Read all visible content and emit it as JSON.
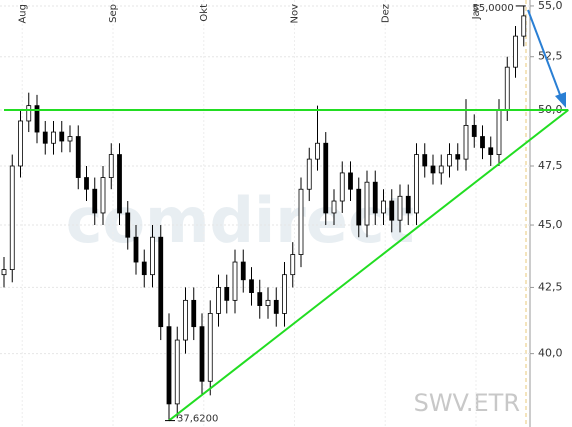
{
  "chart_data": {
    "type": "candlestick",
    "log_scale": true,
    "grid": true,
    "watermark": "comdirect",
    "symbol": "SWV.ETR",
    "categories": [
      null,
      "Aug",
      null,
      null,
      null,
      null,
      null,
      null,
      null,
      null,
      null,
      null,
      "Sep",
      null,
      null,
      null,
      null,
      null,
      null,
      null,
      null,
      null,
      null,
      "Okt",
      null,
      null,
      null,
      null,
      null,
      null,
      null,
      null,
      null,
      null,
      "Nov",
      null,
      null,
      null,
      null,
      null,
      null,
      null,
      null,
      null,
      null,
      "Dez",
      null,
      null,
      null,
      null,
      null,
      null,
      null,
      null,
      null,
      null,
      "Jan",
      null,
      null,
      null,
      null,
      null,
      null,
      null
    ],
    "open": [
      43.0,
      43.2,
      47.5,
      49.5,
      50.2,
      49.0,
      48.5,
      49.0,
      48.6,
      48.8,
      47.0,
      46.5,
      45.5,
      47.0,
      48.0,
      45.5,
      44.5,
      43.5,
      43.0,
      44.5,
      41.0,
      38.2,
      40.5,
      42.0,
      41.0,
      39.0,
      41.5,
      42.5,
      42.0,
      43.5,
      42.8,
      42.3,
      41.8,
      42.0,
      41.5,
      43.0,
      43.8,
      46.5,
      47.8,
      48.5,
      45.5,
      46.0,
      47.2,
      46.5,
      45.0,
      46.8,
      45.5,
      46.0,
      45.2,
      46.2,
      45.5,
      48.0,
      47.5,
      47.2,
      47.5,
      48.0,
      47.8,
      49.3,
      48.8,
      48.3,
      48.0,
      50.0,
      52.0,
      53.5
    ],
    "high": [
      43.7,
      48.0,
      50.0,
      50.8,
      50.7,
      49.5,
      49.5,
      49.5,
      49.3,
      49.3,
      47.5,
      47.0,
      47.5,
      48.5,
      48.5,
      46.0,
      45.0,
      44.0,
      45.0,
      45.0,
      41.5,
      41.0,
      42.5,
      42.5,
      41.5,
      42.0,
      43.0,
      43.0,
      44.0,
      44.0,
      43.3,
      42.8,
      42.5,
      42.5,
      43.5,
      44.3,
      47.0,
      48.3,
      50.2,
      49.0,
      46.5,
      47.7,
      47.7,
      47.0,
      47.3,
      47.3,
      46.5,
      46.5,
      46.7,
      46.7,
      48.5,
      48.5,
      48.0,
      48.0,
      48.5,
      48.5,
      50.5,
      49.8,
      49.3,
      48.8,
      50.5,
      52.5,
      54.0,
      55.0
    ],
    "low": [
      42.5,
      42.7,
      47.0,
      49.0,
      48.5,
      48.0,
      48.0,
      48.1,
      48.1,
      46.5,
      46.0,
      45.0,
      45.0,
      46.5,
      45.0,
      44.0,
      43.0,
      42.5,
      42.5,
      40.5,
      37.62,
      37.7,
      40.0,
      40.5,
      38.5,
      38.5,
      41.0,
      41.5,
      41.5,
      42.3,
      41.8,
      41.3,
      41.3,
      41.0,
      41.0,
      42.5,
      43.3,
      46.0,
      47.3,
      45.0,
      45.0,
      45.5,
      46.0,
      44.5,
      44.5,
      45.0,
      45.0,
      44.7,
      44.7,
      45.0,
      45.0,
      47.0,
      46.7,
      46.7,
      47.0,
      47.3,
      47.3,
      48.3,
      47.8,
      47.5,
      47.5,
      49.5,
      51.5,
      53.0
    ],
    "close": [
      43.2,
      47.5,
      49.5,
      50.2,
      49.0,
      48.5,
      49.0,
      48.6,
      48.8,
      47.0,
      46.5,
      45.5,
      47.0,
      48.0,
      45.5,
      44.5,
      43.5,
      43.0,
      44.5,
      41.0,
      38.2,
      40.5,
      42.0,
      41.0,
      39.0,
      41.5,
      42.5,
      42.0,
      43.5,
      42.8,
      42.3,
      41.8,
      42.0,
      41.5,
      43.0,
      43.8,
      46.5,
      47.8,
      48.5,
      45.5,
      46.0,
      47.2,
      46.5,
      45.0,
      46.8,
      45.5,
      46.0,
      45.2,
      46.2,
      45.5,
      48.0,
      47.5,
      47.2,
      47.5,
      48.0,
      47.8,
      49.3,
      48.8,
      48.3,
      48.0,
      50.0,
      52.0,
      53.5,
      54.5
    ],
    "annotations": [
      {
        "index": 63,
        "value": 55.0,
        "label": "55,0000"
      },
      {
        "index": 20,
        "value": 37.62,
        "label": "37,6200"
      }
    ],
    "lines": [
      {
        "color": "#22dd22",
        "x": [
          0,
          68.4
        ],
        "y": [
          50.0,
          50.0
        ]
      },
      {
        "color": "#22dd22",
        "x": [
          20,
          68.4
        ],
        "y": [
          37.62,
          50.0
        ]
      }
    ],
    "ylim": [
      37.4,
      55.3
    ],
    "yticks": [
      {
        "value": 40,
        "label": "40,0"
      },
      {
        "value": 42.5,
        "label": "42,5"
      },
      {
        "value": 45,
        "label": "45,0"
      },
      {
        "value": 47.5,
        "label": "47,5"
      },
      {
        "value": 50,
        "label": "50,0"
      },
      {
        "value": 52.5,
        "label": "52,5"
      },
      {
        "value": 55,
        "label": "55,0"
      }
    ]
  }
}
